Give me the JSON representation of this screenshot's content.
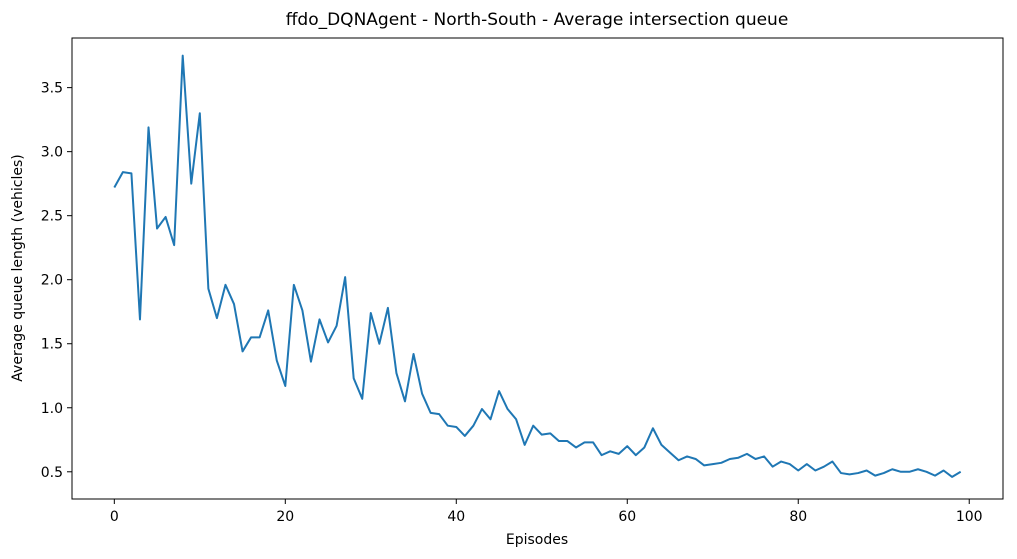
{
  "chart_data": {
    "type": "line",
    "title": "ffdo_DQNAgent - North-South - Average intersection queue",
    "xlabel": "Episodes",
    "ylabel": "Average queue length (vehicles)",
    "xlim": [
      -4.95,
      103.95
    ],
    "ylim": [
      0.2875,
      3.8875
    ],
    "xticks": [
      0,
      20,
      40,
      60,
      80,
      100
    ],
    "yticks": [
      0.5,
      1.0,
      1.5,
      2.0,
      2.5,
      3.0,
      3.5
    ],
    "xtick_labels": [
      "0",
      "20",
      "40",
      "60",
      "80",
      "100"
    ],
    "ytick_labels": [
      "0.5",
      "1.0",
      "1.5",
      "2.0",
      "2.5",
      "3.0",
      "3.5"
    ],
    "grid": false,
    "color": "#1f77b4",
    "series": [
      {
        "x": [
          0,
          1,
          2,
          3,
          4,
          5,
          6,
          7,
          8,
          9,
          10,
          11,
          12,
          13,
          14,
          15,
          16,
          17,
          18,
          19,
          20,
          21,
          22,
          23,
          24,
          25,
          26,
          27,
          28,
          29,
          30,
          31,
          32,
          33,
          34,
          35,
          36,
          37,
          38,
          39,
          40,
          41,
          42,
          43,
          44,
          45,
          46,
          47,
          48,
          49,
          50,
          51,
          52,
          53,
          54,
          55,
          56,
          57,
          58,
          59,
          60,
          61,
          62,
          63,
          64,
          65,
          66,
          67,
          68,
          69,
          70,
          71,
          72,
          73,
          74,
          75,
          76,
          77,
          78,
          79,
          80,
          81,
          82,
          83,
          84,
          85,
          86,
          87,
          88,
          89,
          90,
          91,
          92,
          93,
          94,
          95,
          96,
          97,
          98,
          99
        ],
        "values": [
          2.72,
          2.84,
          2.83,
          1.69,
          3.19,
          2.4,
          2.49,
          2.27,
          3.75,
          2.75,
          3.3,
          1.93,
          1.7,
          1.96,
          1.81,
          1.44,
          1.55,
          1.55,
          1.76,
          1.37,
          1.17,
          1.96,
          1.76,
          1.36,
          1.69,
          1.51,
          1.64,
          2.02,
          1.23,
          1.07,
          1.74,
          1.5,
          1.78,
          1.27,
          1.05,
          1.42,
          1.11,
          0.96,
          0.95,
          0.86,
          0.85,
          0.78,
          0.86,
          0.99,
          0.91,
          1.13,
          0.99,
          0.91,
          0.71,
          0.86,
          0.79,
          0.8,
          0.74,
          0.74,
          0.69,
          0.73,
          0.73,
          0.63,
          0.66,
          0.64,
          0.7,
          0.63,
          0.69,
          0.84,
          0.71,
          0.65,
          0.59,
          0.62,
          0.6,
          0.55,
          0.56,
          0.57,
          0.6,
          0.61,
          0.64,
          0.6,
          0.62,
          0.54,
          0.58,
          0.56,
          0.51,
          0.56,
          0.51,
          0.54,
          0.58,
          0.49,
          0.48,
          0.49,
          0.51,
          0.47,
          0.49,
          0.52,
          0.5,
          0.5,
          0.52,
          0.5,
          0.47,
          0.51,
          0.46,
          0.5
        ]
      }
    ]
  }
}
